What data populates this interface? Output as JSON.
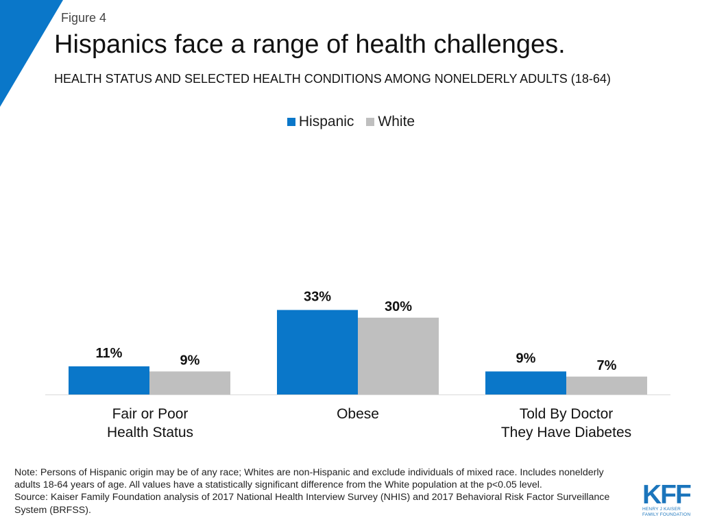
{
  "header": {
    "figure_label": "Figure 4",
    "title": "Hispanics face a range of health challenges.",
    "subtitle": "HEALTH STATUS AND SELECTED HEALTH CONDITIONS AMONG NONELDERLY ADULTS (18-64)"
  },
  "colors": {
    "accent": "#0a77c9",
    "hispanic": "#0a77c9",
    "white": "#bfbfbf",
    "axis": "#d9d9d9"
  },
  "chart_data": {
    "type": "bar",
    "title": "Hispanics face a range of health challenges.",
    "categories": [
      "Fair or Poor Health Status",
      "Obese",
      "Told By Doctor They Have Diabetes"
    ],
    "category_lines": [
      [
        "Fair or Poor",
        "Health Status"
      ],
      [
        "Obese"
      ],
      [
        "Told By Doctor",
        "They Have Diabetes"
      ]
    ],
    "series": [
      {
        "name": "Hispanic",
        "values": [
          11,
          33,
          9
        ],
        "labels": [
          "11%",
          "33%",
          "9%"
        ]
      },
      {
        "name": "White",
        "values": [
          9,
          30,
          7
        ],
        "labels": [
          "9%",
          "30%",
          "7%"
        ]
      }
    ],
    "unit": "%",
    "xlabel": "",
    "ylabel": "",
    "ylim": [
      0,
      100
    ],
    "grid": false,
    "legend_position": "top-center"
  },
  "footer": {
    "note": "Note: Persons of Hispanic origin may be of any race; Whites are non-Hispanic and exclude individuals of mixed race. Includes nonelderly adults 18-64 years of age. All values have a statistically significant difference from the White population at the p<0.05 level.",
    "source": "Source: Kaiser Family Foundation analysis of 2017 National Health Interview Survey (NHIS) and 2017 Behavioral Risk Factor Surveillance System (BRFSS)."
  },
  "logo": {
    "mark": "KFF",
    "line1": "HENRY J KAISER",
    "line2": "FAMILY FOUNDATION"
  }
}
